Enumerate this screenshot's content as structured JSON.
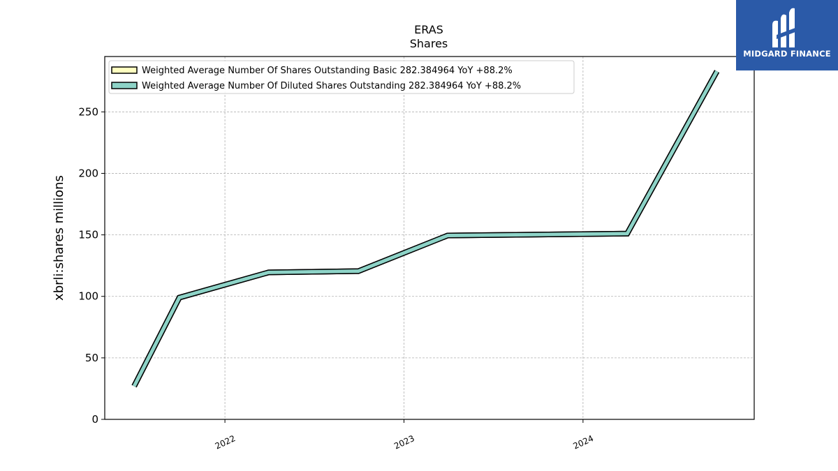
{
  "chart_data": {
    "type": "line",
    "title": "ERAS",
    "subtitle": "Shares",
    "ylabel": "xbrli:shares millions",
    "xlabel": "",
    "ylim": [
      0,
      295
    ],
    "yticks": [
      0,
      50,
      100,
      150,
      200,
      250
    ],
    "xlim": [
      "2021-05-01",
      "2024-12-15"
    ],
    "xticks": [
      "2022-01-01",
      "2023-01-01",
      "2024-01-01"
    ],
    "xtick_labels": [
      "2022",
      "2023",
      "2024"
    ],
    "grid": true,
    "legend_position": "top-left",
    "series": [
      {
        "name": "Weighted Average Number Of Shares Outstanding Basic",
        "legend_label": "Weighted Average Number Of Shares Outstanding Basic  282.384964 YoY +88.2%",
        "color": "#ffffc0",
        "x": [
          "2021-06-30",
          "2021-09-30",
          "2022-03-31",
          "2022-09-30",
          "2023-03-31",
          "2024-03-31",
          "2024-09-30"
        ],
        "y": [
          27,
          99,
          119.5,
          120.5,
          149.5,
          151,
          283
        ]
      },
      {
        "name": "Weighted Average Number Of Diluted Shares Outstanding",
        "legend_label": "Weighted Average Number Of Diluted Shares Outstanding  282.384964 YoY +88.2%",
        "color": "#8dd3c7",
        "x": [
          "2021-06-30",
          "2021-09-30",
          "2022-03-31",
          "2022-09-30",
          "2023-03-31",
          "2024-03-31",
          "2024-09-30"
        ],
        "y": [
          27,
          99,
          119.5,
          120.5,
          149.5,
          151,
          283
        ]
      }
    ]
  },
  "logo": {
    "text": "MIDGARD FINANCE",
    "color": "#2b5aa8"
  }
}
